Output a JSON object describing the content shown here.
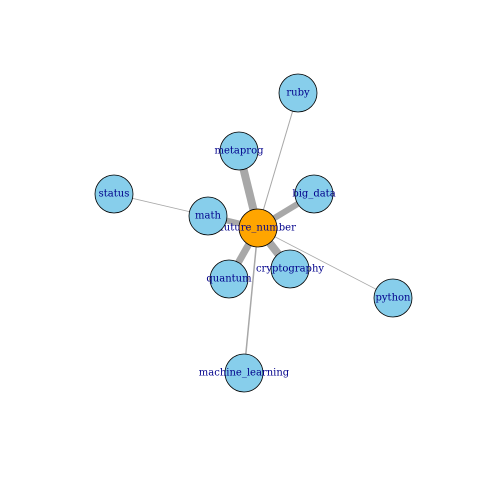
{
  "graph": {
    "colors": {
      "center_fill": "#ffa500",
      "node_fill": "#87ceeb",
      "label_color": "#00008b",
      "edge_color": "#a8a8a8"
    },
    "nodes": [
      {
        "id": "future_number",
        "label": "future_number",
        "center": true
      },
      {
        "id": "ruby",
        "label": "ruby"
      },
      {
        "id": "metaprog",
        "label": "metaprog"
      },
      {
        "id": "status",
        "label": "status"
      },
      {
        "id": "big_data",
        "label": "big_data"
      },
      {
        "id": "math",
        "label": "math"
      },
      {
        "id": "quantum",
        "label": "quantum"
      },
      {
        "id": "cryptography",
        "label": "cryptography"
      },
      {
        "id": "python",
        "label": "python"
      },
      {
        "id": "machine_learning",
        "label": "machine_learning"
      }
    ],
    "edges": [
      {
        "from": "future_number",
        "to": "ruby",
        "weight": 1
      },
      {
        "from": "future_number",
        "to": "metaprog",
        "weight": 8
      },
      {
        "from": "future_number",
        "to": "big_data",
        "weight": 6
      },
      {
        "from": "future_number",
        "to": "math",
        "weight": 6
      },
      {
        "from": "future_number",
        "to": "quantum",
        "weight": 7
      },
      {
        "from": "future_number",
        "to": "cryptography",
        "weight": 8
      },
      {
        "from": "future_number",
        "to": "python",
        "weight": 0.8
      },
      {
        "from": "future_number",
        "to": "machine_learning",
        "weight": 1.5
      },
      {
        "from": "math",
        "to": "status",
        "weight": 0.8
      }
    ]
  }
}
